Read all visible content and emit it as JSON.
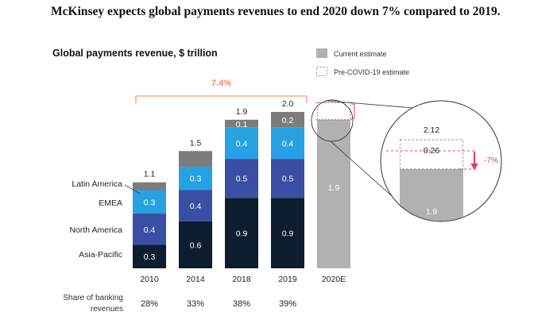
{
  "headline": "McKinsey expects global payments revenues to end 2020 down 7% compared to 2019.",
  "chart_data": {
    "type": "bar",
    "title": "Global payments revenue, $ trillion",
    "categories": [
      "2010",
      "2014",
      "2018",
      "2019",
      "2020E"
    ],
    "series": [
      {
        "name": "Asia-Pacific",
        "values": [
          0.3,
          0.6,
          0.9,
          0.9,
          null
        ],
        "labels": [
          "0.3",
          "0.6",
          "0.9",
          "0.9",
          ""
        ],
        "color": "#0d1c2e"
      },
      {
        "name": "North America",
        "values": [
          0.4,
          0.4,
          0.5,
          0.5,
          null
        ],
        "labels": [
          "0.4",
          "0.4",
          "0.5",
          "0.5",
          ""
        ],
        "color": "#3a4ea3"
      },
      {
        "name": "EMEA",
        "values": [
          0.3,
          0.3,
          0.4,
          0.4,
          null
        ],
        "labels": [
          "0.3",
          "0.3",
          "0.4",
          "0.4",
          ""
        ],
        "color": "#27a1e2"
      },
      {
        "name": "Latin America",
        "values": [
          0.1,
          0.2,
          0.1,
          0.2,
          null
        ],
        "labels": [
          "",
          "",
          "0.1",
          "0.2",
          ""
        ],
        "color": "#7c7c7c"
      },
      {
        "name": "Current estimate",
        "values": [
          null,
          null,
          null,
          null,
          1.9
        ],
        "labels": [
          "",
          "",
          "",
          "",
          "1.9"
        ],
        "color": "#b1b1b1"
      }
    ],
    "totals": [
      "1.1",
      "1.5",
      "1.9",
      "2.0",
      ""
    ],
    "ylim": [
      0,
      2.2
    ],
    "legend": {
      "placement": "top-right",
      "items": [
        {
          "label": "Current estimate",
          "style": "solid",
          "color": "#b1b1b1"
        },
        {
          "label": "Pre-COVID-19 estimate",
          "style": "dashed",
          "color": "#8a8a8a"
        }
      ]
    },
    "pre_covid_estimate": {
      "category": "2020E",
      "total": 2.12,
      "gap": 0.26,
      "total_label": "2.12",
      "gap_label": "0.26"
    },
    "growth_annotation": {
      "label": "7.4%",
      "from": "2010",
      "to": "2019",
      "color": "#f08b5b"
    },
    "change_annotation": {
      "label": "-7%",
      "color": "#e0405f"
    },
    "zoom_segment_label": "1.9",
    "share_of_banking": {
      "label_line1": "Share of banking",
      "label_line2": "revenues",
      "values": [
        "28%",
        "33%",
        "38%",
        "39%"
      ]
    }
  }
}
